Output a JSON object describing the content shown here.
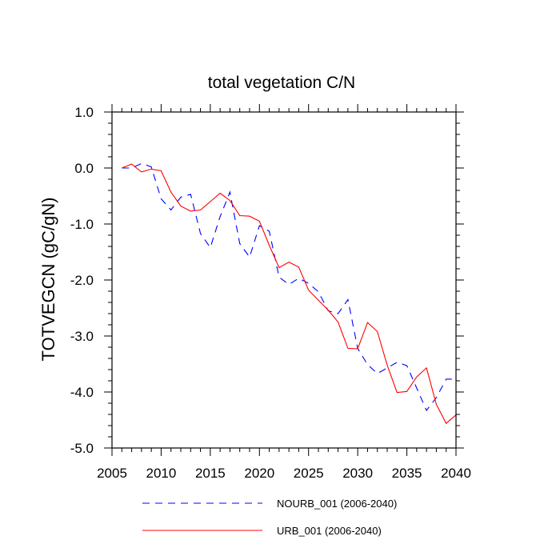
{
  "chart_data": {
    "type": "line",
    "title": "total vegetation C/N",
    "xlabel": "",
    "ylabel": "TOTVEGCN  (gC/gN)",
    "xlim": [
      2005,
      2040
    ],
    "ylim": [
      -5.0,
      1.0
    ],
    "xticks": [
      2005,
      2010,
      2015,
      2020,
      2025,
      2030,
      2035,
      2040
    ],
    "xtick_labels": [
      "2005",
      "2010",
      "2015",
      "2020",
      "2025",
      "2030",
      "2035",
      "2040"
    ],
    "yticks": [
      1.0,
      0.0,
      -1.0,
      -2.0,
      -3.0,
      -4.0,
      -5.0
    ],
    "ytick_labels": [
      "1.0",
      "0.0",
      "-1.0",
      "-2.0",
      "-3.0",
      "-4.0",
      "-5.0"
    ],
    "grid": false,
    "legend_position": "bottom",
    "x": [
      2006,
      2007,
      2008,
      2009,
      2010,
      2011,
      2012,
      2013,
      2014,
      2015,
      2016,
      2017,
      2018,
      2019,
      2020,
      2021,
      2022,
      2023,
      2024,
      2025,
      2026,
      2027,
      2028,
      2029,
      2030,
      2031,
      2032,
      2033,
      2034,
      2035,
      2036,
      2037,
      2038,
      2039,
      2040
    ],
    "series": [
      {
        "name": "NOURB_001 (2006-2040)",
        "color": "#0000ff",
        "style": "dashed",
        "values": [
          0.0,
          0.0,
          0.08,
          0.02,
          -0.55,
          -0.75,
          -0.52,
          -0.47,
          -1.17,
          -1.42,
          -0.87,
          -0.43,
          -1.35,
          -1.59,
          -1.03,
          -1.13,
          -1.95,
          -2.08,
          -1.97,
          -2.06,
          -2.21,
          -2.55,
          -2.6,
          -2.35,
          -3.22,
          -3.51,
          -3.67,
          -3.57,
          -3.47,
          -3.53,
          -3.93,
          -4.33,
          -4.1,
          -3.77,
          -3.77
        ]
      },
      {
        "name": "URB_001 (2006-2040)",
        "color": "#ff0000",
        "style": "solid",
        "values": [
          0.0,
          0.07,
          -0.07,
          -0.02,
          -0.05,
          -0.43,
          -0.68,
          -0.77,
          -0.75,
          -0.6,
          -0.45,
          -0.58,
          -0.85,
          -0.86,
          -0.95,
          -1.38,
          -1.78,
          -1.68,
          -1.77,
          -2.18,
          -2.36,
          -2.54,
          -2.75,
          -3.22,
          -3.23,
          -2.76,
          -2.92,
          -3.52,
          -4.01,
          -3.99,
          -3.73,
          -3.57,
          -4.22,
          -4.56,
          -4.41
        ]
      }
    ]
  }
}
